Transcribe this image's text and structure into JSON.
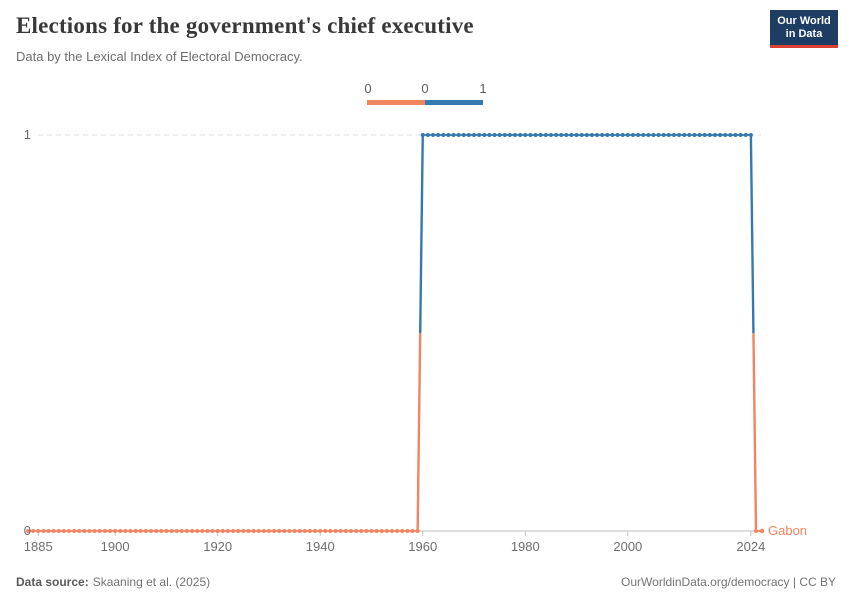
{
  "header": {
    "title": "Elections for the government's chief executive",
    "subtitle": "Data by the Lexical Index of Electoral Democracy.",
    "logo": {
      "line1": "Our World",
      "line2": "in Data",
      "bg_color": "#1d3d63",
      "accent_color": "#dc3e32"
    }
  },
  "legend": {
    "labels": [
      "0",
      "0",
      "1"
    ]
  },
  "chart_data": {
    "type": "line",
    "title": "Elections for the government's chief executive",
    "entity": "Gabon",
    "series_label": "Gabon",
    "xlim": [
      1883,
      2025
    ],
    "ylim": [
      0,
      1
    ],
    "xticks": [
      1885,
      1900,
      1920,
      1940,
      1960,
      1980,
      2000,
      2024
    ],
    "yticks": [
      0,
      1
    ],
    "grid": "dashed-horizontal-at-max",
    "legend_position": "top-center",
    "markers": "yearly-dots",
    "colors": {
      "0": "#F0855F",
      "1": "#3679B1"
    },
    "segments": [
      {
        "from": 1883,
        "to": 1959,
        "value": 0
      },
      {
        "from": 1960,
        "to": 2024,
        "value": 1
      },
      {
        "from": 2025,
        "to": 2025,
        "value": 0
      }
    ]
  },
  "footer": {
    "source_label": "Data source:",
    "source_value": "Skaaning et al. (2025)",
    "right_text": "OurWorldinData.org/democracy | CC BY"
  }
}
